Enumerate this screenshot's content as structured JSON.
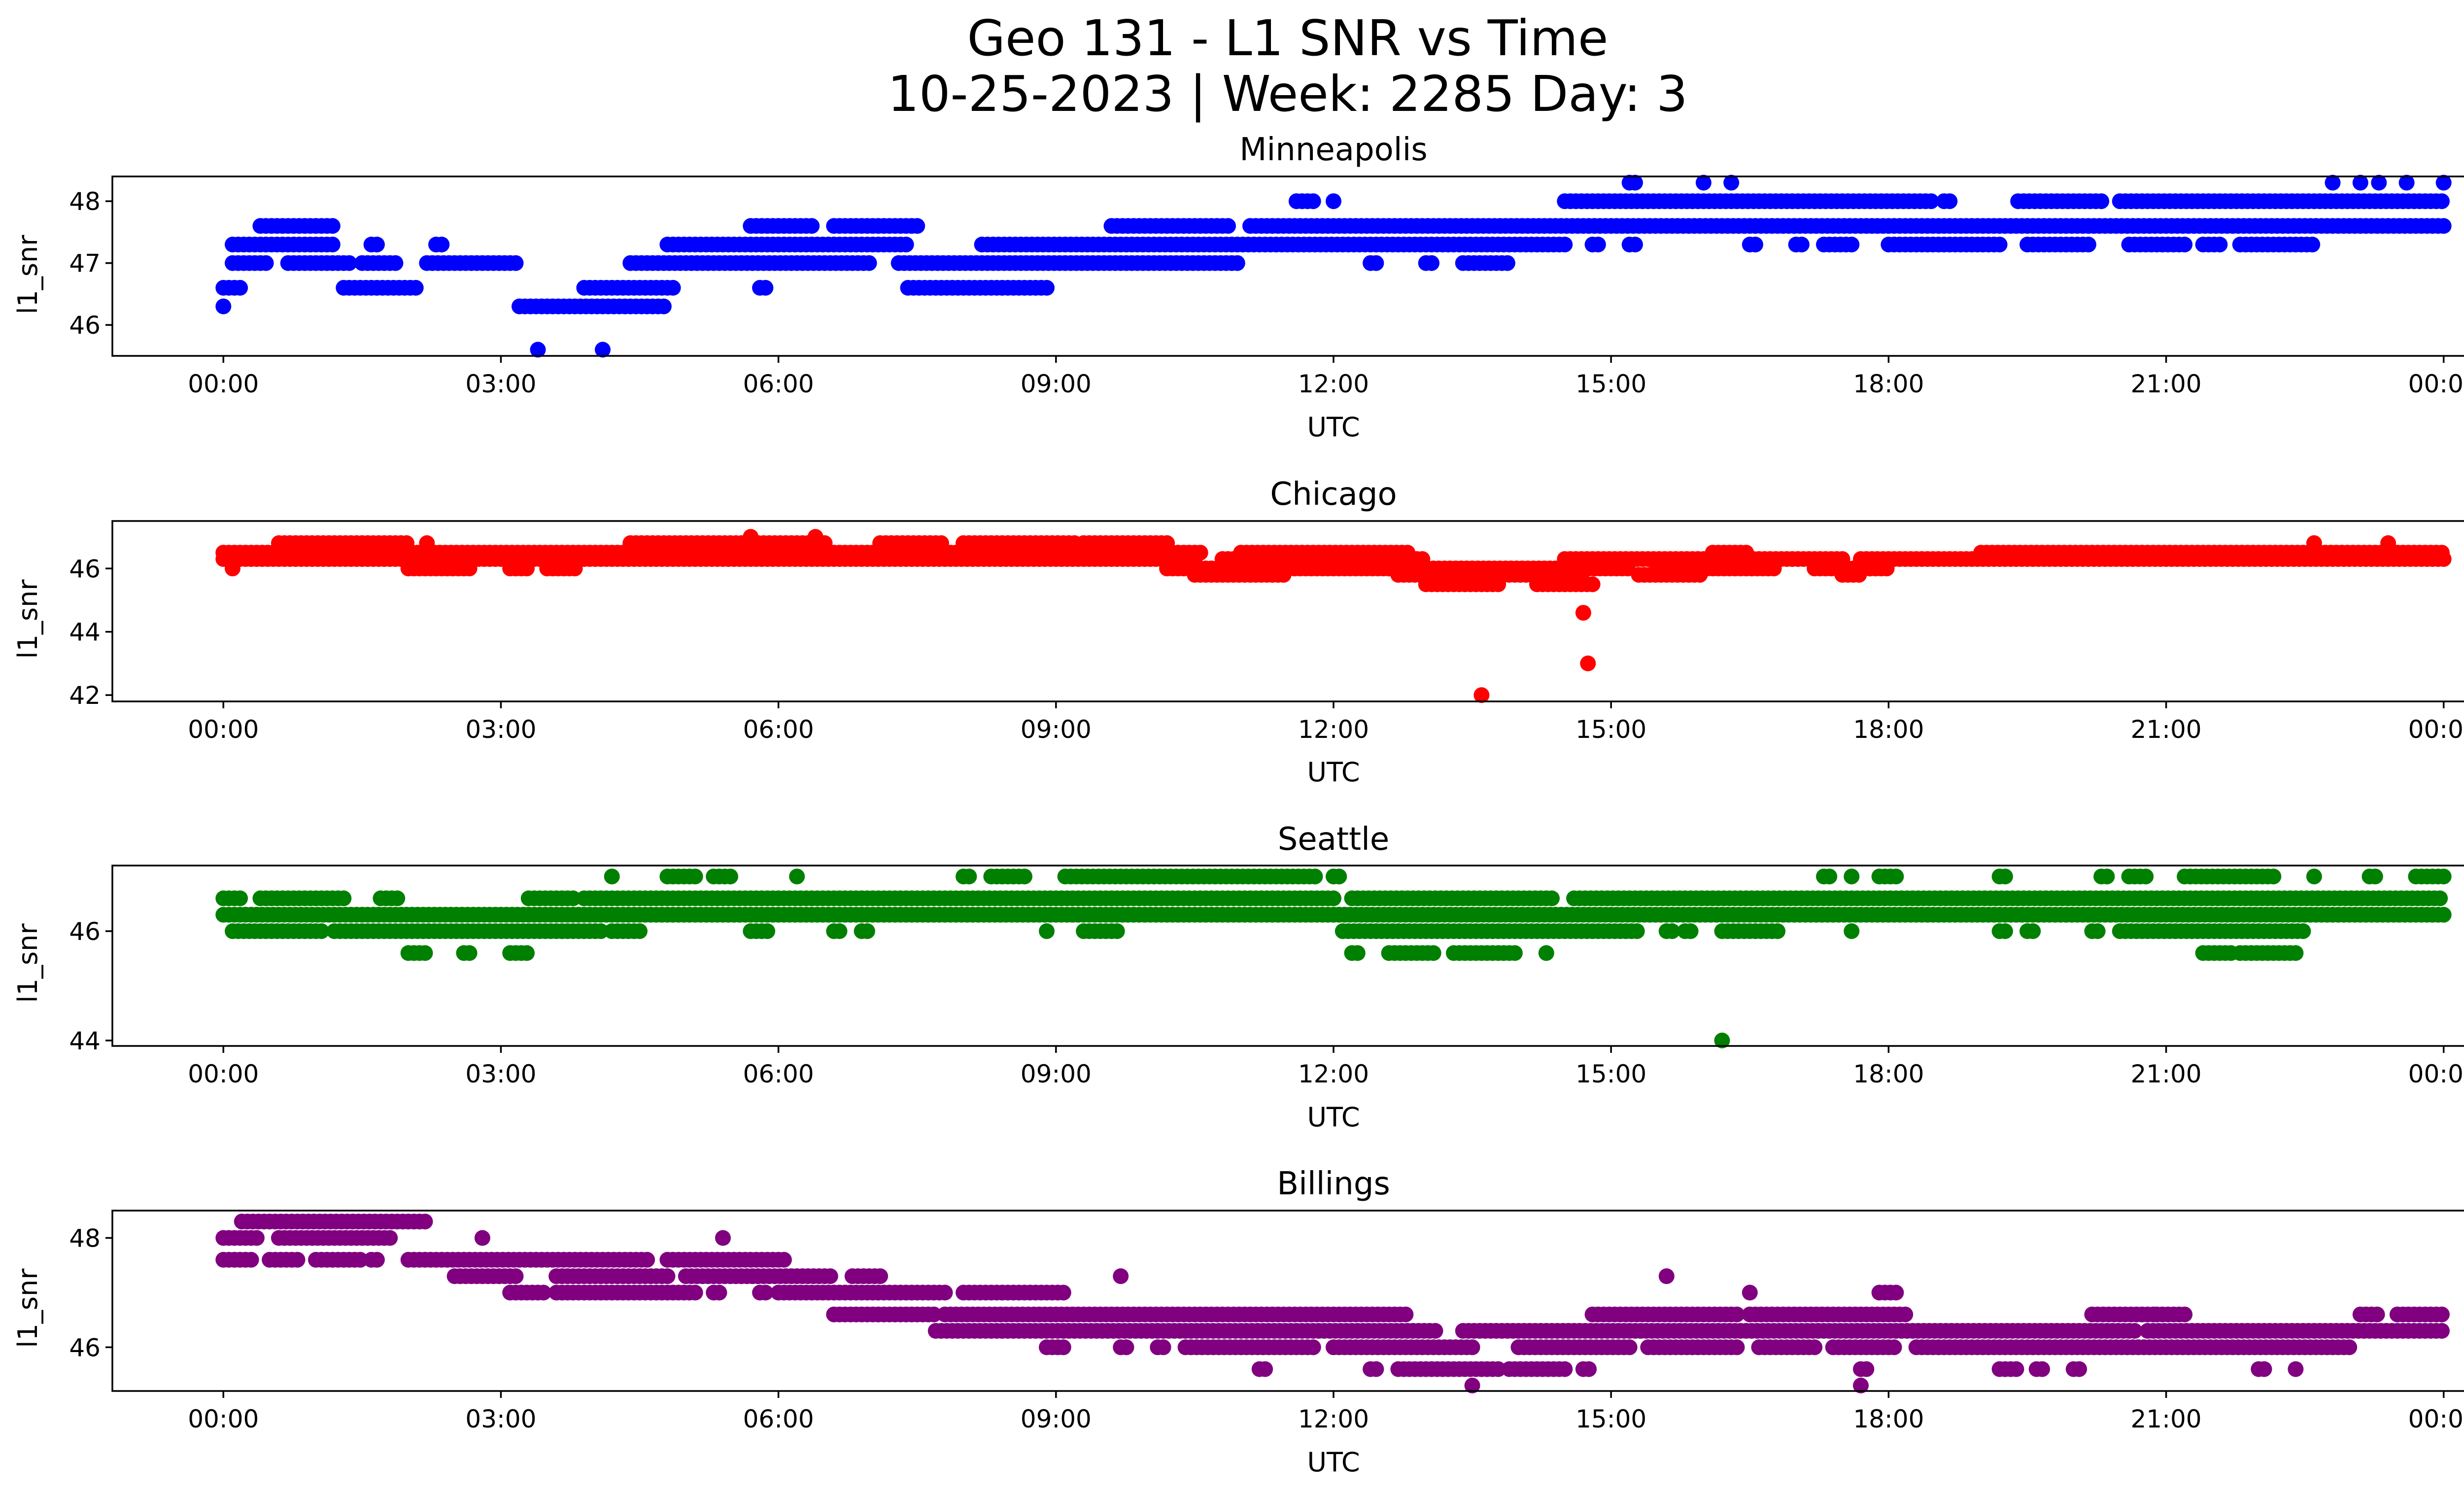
{
  "figure": {
    "title_line1": "Geo 131 - L1 SNR vs Time",
    "title_line2": "10-25-2023 | Week: 2285 Day: 3"
  },
  "chart_data": [
    {
      "type": "scatter",
      "title": "Minneapolis",
      "xlabel": "UTC",
      "ylabel": "l1_snr",
      "color": "#0000ff",
      "xticks": [
        "00:00",
        "03:00",
        "06:00",
        "09:00",
        "12:00",
        "15:00",
        "18:00",
        "21:00",
        "00:00"
      ],
      "xlim_hours": [
        -1.2,
        25.2
      ],
      "yticks": [
        46,
        47,
        48
      ],
      "ylim": [
        45.5,
        48.4
      ],
      "series": [
        {
          "level": 46.3,
          "ranges": [
            [
              0.0,
              0.05
            ],
            [
              3.2,
              4.8
            ]
          ]
        },
        {
          "level": 46.6,
          "ranges": [
            [
              0.0,
              0.2
            ],
            [
              1.3,
              2.1
            ],
            [
              3.9,
              4.9
            ],
            [
              5.8,
              5.9
            ],
            [
              7.4,
              8.9
            ]
          ]
        },
        {
          "level": 47.0,
          "ranges": [
            [
              0.1,
              0.5
            ],
            [
              0.7,
              1.4
            ],
            [
              1.5,
              1.9
            ],
            [
              2.2,
              3.2
            ],
            [
              4.4,
              7.0
            ],
            [
              7.3,
              11.0
            ],
            [
              12.4,
              12.5
            ],
            [
              13.0,
              13.1
            ],
            [
              13.4,
              13.9
            ]
          ]
        },
        {
          "level": 47.3,
          "ranges": [
            [
              0.1,
              1.2
            ],
            [
              1.6,
              1.7
            ],
            [
              2.3,
              2.4
            ],
            [
              4.8,
              7.4
            ],
            [
              8.2,
              14.5
            ],
            [
              14.8,
              14.9
            ],
            [
              15.2,
              15.3
            ],
            [
              16.5,
              16.6
            ],
            [
              17.0,
              17.1
            ],
            [
              17.3,
              17.6
            ],
            [
              18.0,
              19.2
            ],
            [
              19.5,
              20.2
            ],
            [
              20.6,
              21.2
            ],
            [
              21.4,
              21.6
            ],
            [
              21.8,
              22.6
            ]
          ]
        },
        {
          "level": 47.6,
          "ranges": [
            [
              0.4,
              1.2
            ],
            [
              5.7,
              6.4
            ],
            [
              6.6,
              7.5
            ],
            [
              9.6,
              10.9
            ],
            [
              11.1,
              24.0
            ]
          ]
        },
        {
          "level": 48.0,
          "ranges": [
            [
              11.6,
              11.8
            ],
            [
              12.0,
              12.05
            ],
            [
              14.5,
              18.5
            ],
            [
              18.6,
              18.7
            ],
            [
              19.4,
              20.3
            ],
            [
              20.5,
              24.0
            ]
          ]
        },
        {
          "level": 48.3,
          "ranges": [
            [
              15.2,
              15.3
            ],
            [
              16.0,
              16.05
            ],
            [
              16.3,
              16.35
            ],
            [
              22.8,
              22.85
            ],
            [
              23.1,
              23.15
            ],
            [
              23.3,
              23.35
            ],
            [
              23.6,
              23.65
            ],
            [
              24.0,
              24.0
            ]
          ]
        },
        {
          "level": 45.6,
          "ranges": [
            [
              3.4,
              3.45
            ],
            [
              4.1,
              4.15
            ]
          ]
        }
      ]
    },
    {
      "type": "scatter",
      "title": "Chicago",
      "xlabel": "UTC",
      "ylabel": "l1_snr",
      "color": "#ff0000",
      "xticks": [
        "00:00",
        "03:00",
        "06:00",
        "09:00",
        "12:00",
        "15:00",
        "18:00",
        "21:00",
        "00:00"
      ],
      "xlim_hours": [
        -1.2,
        25.2
      ],
      "yticks": [
        42,
        44,
        46
      ],
      "ylim": [
        41.8,
        47.5
      ],
      "series": [
        {
          "level": 46.5,
          "ranges": [
            [
              0.0,
              10.6
            ],
            [
              11.0,
              12.8
            ],
            [
              16.1,
              16.5
            ],
            [
              19.0,
              24.0
            ]
          ]
        },
        {
          "level": 46.3,
          "ranges": [
            [
              0.0,
              10.5
            ],
            [
              10.8,
              13.0
            ],
            [
              14.5,
              17.5
            ],
            [
              17.7,
              24.0
            ]
          ]
        },
        {
          "level": 46.0,
          "ranges": [
            [
              0.1,
              0.15
            ],
            [
              2.0,
              2.7
            ],
            [
              3.1,
              3.3
            ],
            [
              3.5,
              3.8
            ],
            [
              10.2,
              12.6
            ],
            [
              12.6,
              15.2
            ],
            [
              15.5,
              16.8
            ],
            [
              17.2,
              17.8
            ],
            [
              17.8,
              18.0
            ]
          ]
        },
        {
          "level": 46.8,
          "ranges": [
            [
              0.6,
              2.0
            ],
            [
              2.2,
              2.25
            ],
            [
              4.4,
              6.5
            ],
            [
              7.1,
              7.8
            ],
            [
              8.0,
              9.2
            ],
            [
              9.3,
              10.2
            ],
            [
              22.6,
              22.65
            ],
            [
              23.4,
              23.45
            ]
          ]
        },
        {
          "level": 45.8,
          "ranges": [
            [
              10.5,
              11.5
            ],
            [
              12.7,
              14.7
            ],
            [
              15.3,
              16.0
            ],
            [
              17.5,
              17.7
            ]
          ]
        },
        {
          "level": 45.5,
          "ranges": [
            [
              13.0,
              13.8
            ],
            [
              14.2,
              14.8
            ]
          ]
        },
        {
          "level": 47.0,
          "ranges": [
            [
              5.7,
              5.75
            ],
            [
              6.4,
              6.45
            ]
          ]
        },
        {
          "level": 44.6,
          "ranges": [
            [
              14.7,
              14.75
            ]
          ]
        },
        {
          "level": 43.0,
          "ranges": [
            [
              14.75,
              14.8
            ]
          ]
        },
        {
          "level": 42.0,
          "ranges": [
            [
              13.6,
              13.65
            ]
          ]
        }
      ]
    },
    {
      "type": "scatter",
      "title": "Seattle",
      "xlabel": "UTC",
      "ylabel": "l1_snr",
      "color": "#008000",
      "xticks": [
        "00:00",
        "03:00",
        "06:00",
        "09:00",
        "12:00",
        "15:00",
        "18:00",
        "21:00",
        "00:00"
      ],
      "xlim_hours": [
        -1.2,
        25.2
      ],
      "yticks": [
        44,
        46
      ],
      "ylim": [
        43.9,
        47.2
      ],
      "series": [
        {
          "level": 46.3,
          "ranges": [
            [
              0.0,
              24.0
            ]
          ]
        },
        {
          "level": 46.6,
          "ranges": [
            [
              0.0,
              0.2
            ],
            [
              0.4,
              1.3
            ],
            [
              1.7,
              1.9
            ],
            [
              3.3,
              3.8
            ],
            [
              3.9,
              12.0
            ],
            [
              12.2,
              14.4
            ],
            [
              14.6,
              24.0
            ]
          ]
        },
        {
          "level": 46.0,
          "ranges": [
            [
              0.1,
              1.1
            ],
            [
              1.2,
              4.1
            ],
            [
              4.2,
              4.5
            ],
            [
              5.7,
              5.9
            ],
            [
              6.6,
              6.7
            ],
            [
              6.9,
              7.0
            ],
            [
              8.9,
              8.95
            ],
            [
              9.3,
              9.7
            ],
            [
              12.1,
              15.3
            ],
            [
              15.6,
              15.7
            ],
            [
              15.8,
              15.9
            ],
            [
              16.2,
              16.8
            ],
            [
              17.6,
              17.65
            ],
            [
              19.2,
              19.3
            ],
            [
              19.5,
              19.6
            ],
            [
              20.2,
              20.3
            ],
            [
              20.5,
              22.5
            ]
          ]
        },
        {
          "level": 45.6,
          "ranges": [
            [
              2.0,
              2.2
            ],
            [
              2.6,
              2.7
            ],
            [
              3.1,
              3.3
            ],
            [
              12.2,
              12.3
            ],
            [
              12.6,
              13.1
            ],
            [
              13.3,
              14.0
            ],
            [
              14.3,
              14.35
            ],
            [
              21.4,
              21.7
            ],
            [
              21.8,
              22.4
            ]
          ]
        },
        {
          "level": 47.0,
          "ranges": [
            [
              4.2,
              4.25
            ],
            [
              4.8,
              5.1
            ],
            [
              5.3,
              5.5
            ],
            [
              6.2,
              6.25
            ],
            [
              8.0,
              8.1
            ],
            [
              8.3,
              8.7
            ],
            [
              9.1,
              11.8
            ],
            [
              12.0,
              12.1
            ],
            [
              17.3,
              17.4
            ],
            [
              17.6,
              17.65
            ],
            [
              17.9,
              18.1
            ],
            [
              19.2,
              19.3
            ],
            [
              20.3,
              20.4
            ],
            [
              20.6,
              20.8
            ],
            [
              21.2,
              22.2
            ],
            [
              22.6,
              22.65
            ],
            [
              23.2,
              23.3
            ],
            [
              23.7,
              24.0
            ]
          ]
        },
        {
          "level": 44.0,
          "ranges": [
            [
              16.2,
              16.25
            ]
          ]
        }
      ]
    },
    {
      "type": "scatter",
      "title": "Billings",
      "xlabel": "UTC",
      "ylabel": "l1_snr",
      "color": "#800080",
      "xticks": [
        "00:00",
        "03:00",
        "06:00",
        "09:00",
        "12:00",
        "15:00",
        "18:00",
        "21:00",
        "00:00"
      ],
      "xlim_hours": [
        -1.2,
        25.2
      ],
      "yticks": [
        46,
        48
      ],
      "ylim": [
        45.2,
        48.5
      ],
      "series": [
        {
          "level": 48.3,
          "ranges": [
            [
              0.2,
              2.2
            ]
          ]
        },
        {
          "level": 48.0,
          "ranges": [
            [
              0.0,
              0.4
            ],
            [
              0.6,
              1.8
            ],
            [
              2.8,
              2.85
            ],
            [
              5.4,
              5.45
            ]
          ]
        },
        {
          "level": 47.6,
          "ranges": [
            [
              0.0,
              0.3
            ],
            [
              0.5,
              0.8
            ],
            [
              1.0,
              1.5
            ],
            [
              1.6,
              1.7
            ],
            [
              2.0,
              4.6
            ],
            [
              4.8,
              6.1
            ]
          ]
        },
        {
          "level": 47.3,
          "ranges": [
            [
              2.5,
              3.2
            ],
            [
              3.6,
              4.8
            ],
            [
              5.0,
              6.6
            ],
            [
              6.8,
              7.1
            ]
          ]
        },
        {
          "level": 47.0,
          "ranges": [
            [
              3.1,
              3.5
            ],
            [
              3.6,
              5.1
            ],
            [
              5.3,
              5.4
            ],
            [
              5.8,
              5.9
            ],
            [
              6.0,
              7.8
            ],
            [
              8.0,
              9.1
            ],
            [
              16.5,
              16.55
            ],
            [
              17.9,
              18.1
            ]
          ]
        },
        {
          "level": 46.6,
          "ranges": [
            [
              6.6,
              7.7
            ],
            [
              7.8,
              12.8
            ],
            [
              14.8,
              16.4
            ],
            [
              16.5,
              18.2
            ],
            [
              20.2,
              20.9
            ],
            [
              20.9,
              21.2
            ],
            [
              23.1,
              23.3
            ],
            [
              23.5,
              24.0
            ]
          ]
        },
        {
          "level": 46.3,
          "ranges": [
            [
              7.7,
              13.1
            ],
            [
              13.4,
              20.7
            ],
            [
              20.8,
              24.0
            ]
          ]
        },
        {
          "level": 46.0,
          "ranges": [
            [
              8.9,
              9.1
            ],
            [
              9.7,
              9.8
            ],
            [
              10.1,
              10.2
            ],
            [
              10.4,
              11.8
            ],
            [
              12.0,
              13.5
            ],
            [
              14.0,
              15.2
            ],
            [
              15.4,
              16.4
            ],
            [
              16.6,
              17.2
            ],
            [
              17.4,
              18.1
            ],
            [
              18.3,
              23.0
            ]
          ]
        },
        {
          "level": 45.6,
          "ranges": [
            [
              11.2,
              11.3
            ],
            [
              12.4,
              12.5
            ],
            [
              12.7,
              13.8
            ],
            [
              13.9,
              14.5
            ],
            [
              14.7,
              14.8
            ],
            [
              17.7,
              17.8
            ],
            [
              19.2,
              19.4
            ],
            [
              19.6,
              19.7
            ],
            [
              20.0,
              20.1
            ],
            [
              22.0,
              22.1
            ],
            [
              22.4,
              22.45
            ]
          ]
        },
        {
          "level": 45.3,
          "ranges": [
            [
              13.5,
              13.55
            ],
            [
              17.7,
              17.75
            ]
          ]
        },
        {
          "level": 47.3,
          "ranges": [
            [
              9.7,
              9.75
            ],
            [
              15.6,
              15.65
            ]
          ]
        }
      ]
    }
  ]
}
